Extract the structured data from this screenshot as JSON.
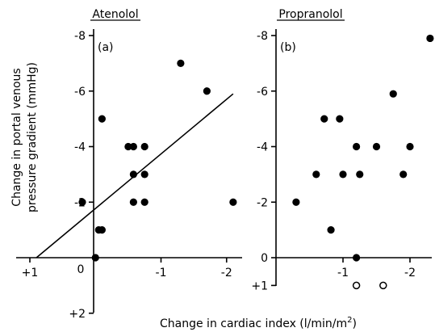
{
  "figure": {
    "xlabel_prefix": "Change in cardiac index (l/min/m",
    "xlabel_sup": "2",
    "xlabel_suffix": ")",
    "ylabel_line1": "Change in portal venous",
    "ylabel_line2": "pressure gradient (mmHg)"
  },
  "chart_data": [
    {
      "type": "scatter",
      "title": "Atenolol",
      "panel_label": "(a)",
      "xlabel": "Change in cardiac index (l/min/m2)",
      "ylabel": "Change in portal venous pressure gradient (mmHg)",
      "xlim": [
        1,
        -2.2
      ],
      "ylim": [
        2,
        -8.3
      ],
      "x_ticks": [
        {
          "v": 1,
          "t": "+1"
        },
        {
          "v": -1,
          "t": "-1"
        },
        {
          "v": -2,
          "t": "-2"
        }
      ],
      "y_ticks": [
        {
          "v": -8,
          "t": "-8"
        },
        {
          "v": -6,
          "t": "-6"
        },
        {
          "v": -4,
          "t": "-4"
        },
        {
          "v": -2,
          "t": "-2"
        },
        {
          "v": 2,
          "t": "+2"
        }
      ],
      "origin_label": "0",
      "series": [
        {
          "marker": "filled",
          "points": [
            {
              "x": 0.2,
              "y": -2
            },
            {
              "x": 0,
              "y": 0
            },
            {
              "x": -0.05,
              "y": -1
            },
            {
              "x": -0.1,
              "y": -1
            },
            {
              "x": -0.1,
              "y": -5
            },
            {
              "x": -0.5,
              "y": -4
            },
            {
              "x": -0.58,
              "y": -4
            },
            {
              "x": -0.75,
              "y": -4
            },
            {
              "x": -0.58,
              "y": -3
            },
            {
              "x": -0.75,
              "y": -3
            },
            {
              "x": -0.58,
              "y": -2
            },
            {
              "x": -0.75,
              "y": -2
            },
            {
              "x": -1.3,
              "y": -7
            },
            {
              "x": -1.7,
              "y": -6
            },
            {
              "x": -2.1,
              "y": -2
            }
          ]
        }
      ],
      "regression_line": [
        {
          "x": 0.9,
          "y": 0
        },
        {
          "x": -2.1,
          "y": -5.9
        }
      ]
    },
    {
      "type": "scatter",
      "title": "Propranolol",
      "panel_label": "(b)",
      "xlim": [
        0,
        -2.3
      ],
      "ylim": [
        1,
        -8.3
      ],
      "x_ticks": [
        {
          "v": -1,
          "t": "-1"
        },
        {
          "v": -2,
          "t": "-2"
        }
      ],
      "y_ticks": [
        {
          "v": -8,
          "t": "-8"
        },
        {
          "v": -6,
          "t": "-6"
        },
        {
          "v": -4,
          "t": "-4"
        },
        {
          "v": -2,
          "t": "-2"
        },
        {
          "v": 0,
          "t": "0"
        },
        {
          "v": 1,
          "t": "+1"
        }
      ],
      "series": [
        {
          "marker": "filled",
          "points": [
            {
              "x": -0.3,
              "y": -2
            },
            {
              "x": -0.6,
              "y": -3
            },
            {
              "x": -0.72,
              "y": -5
            },
            {
              "x": -0.82,
              "y": -1
            },
            {
              "x": -0.95,
              "y": -5
            },
            {
              "x": -1.0,
              "y": -3
            },
            {
              "x": -1.2,
              "y": -4
            },
            {
              "x": -1.25,
              "y": -3
            },
            {
              "x": -1.2,
              "y": 0
            },
            {
              "x": -1.5,
              "y": -4
            },
            {
              "x": -1.75,
              "y": -5.9
            },
            {
              "x": -1.9,
              "y": -3
            },
            {
              "x": -2.0,
              "y": -4
            },
            {
              "x": -2.3,
              "y": -7.9
            }
          ]
        },
        {
          "marker": "open",
          "points": [
            {
              "x": -1.2,
              "y": 1
            },
            {
              "x": -1.6,
              "y": 1
            }
          ]
        }
      ]
    }
  ]
}
